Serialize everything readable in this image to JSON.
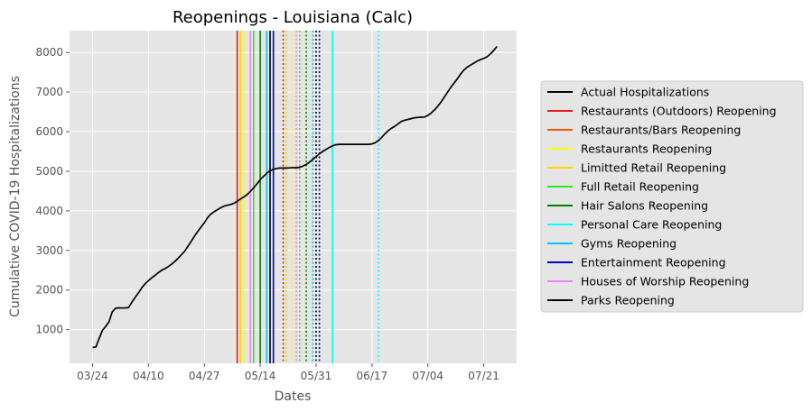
{
  "chart_data": {
    "type": "line",
    "title": "Reopenings - Louisiana (Calc)",
    "xlabel": "Dates",
    "ylabel": "Cumulative COVID-19 Hospitalizations",
    "x_ticks": [
      "03/24",
      "04/10",
      "04/27",
      "05/14",
      "05/31",
      "06/17",
      "07/04",
      "07/21"
    ],
    "y_ticks": [
      1000,
      2000,
      3000,
      4000,
      5000,
      6000,
      7000,
      8000
    ],
    "xlim": [
      "2020-03-17",
      "2020-07-31"
    ],
    "ylim": [
      150,
      8550
    ],
    "grid": true,
    "legend_position": "right",
    "series": [
      {
        "name": "Actual Hospitalizations",
        "color": "#000000",
        "points": [
          [
            "2020-03-24",
            550
          ],
          [
            "2020-03-25",
            560
          ],
          [
            "2020-03-26",
            780
          ],
          [
            "2020-03-27",
            980
          ],
          [
            "2020-03-28",
            1080
          ],
          [
            "2020-03-29",
            1200
          ],
          [
            "2020-03-30",
            1450
          ],
          [
            "2020-03-31",
            1540
          ],
          [
            "2020-04-01",
            1550
          ],
          [
            "2020-04-02",
            1545
          ],
          [
            "2020-04-03",
            1550
          ],
          [
            "2020-04-04",
            1560
          ],
          [
            "2020-04-05",
            1700
          ],
          [
            "2020-04-06",
            1820
          ],
          [
            "2020-04-07",
            1930
          ],
          [
            "2020-04-08",
            2060
          ],
          [
            "2020-04-09",
            2160
          ],
          [
            "2020-04-10",
            2240
          ],
          [
            "2020-04-11",
            2310
          ],
          [
            "2020-04-12",
            2370
          ],
          [
            "2020-04-13",
            2440
          ],
          [
            "2020-04-14",
            2500
          ],
          [
            "2020-04-15",
            2540
          ],
          [
            "2020-04-16",
            2590
          ],
          [
            "2020-04-17",
            2650
          ],
          [
            "2020-04-18",
            2720
          ],
          [
            "2020-04-19",
            2800
          ],
          [
            "2020-04-20",
            2890
          ],
          [
            "2020-04-21",
            2980
          ],
          [
            "2020-04-22",
            3100
          ],
          [
            "2020-04-23",
            3230
          ],
          [
            "2020-04-24",
            3360
          ],
          [
            "2020-04-25",
            3480
          ],
          [
            "2020-04-26",
            3590
          ],
          [
            "2020-04-27",
            3700
          ],
          [
            "2020-04-28",
            3830
          ],
          [
            "2020-04-29",
            3920
          ],
          [
            "2020-04-30",
            3980
          ],
          [
            "2020-05-01",
            4030
          ],
          [
            "2020-05-02",
            4080
          ],
          [
            "2020-05-03",
            4120
          ],
          [
            "2020-05-04",
            4140
          ],
          [
            "2020-05-05",
            4160
          ],
          [
            "2020-05-06",
            4190
          ],
          [
            "2020-05-07",
            4240
          ],
          [
            "2020-05-08",
            4300
          ],
          [
            "2020-05-09",
            4350
          ],
          [
            "2020-05-10",
            4410
          ],
          [
            "2020-05-11",
            4490
          ],
          [
            "2020-05-12",
            4580
          ],
          [
            "2020-05-13",
            4680
          ],
          [
            "2020-05-14",
            4790
          ],
          [
            "2020-05-15",
            4870
          ],
          [
            "2020-05-16",
            4950
          ],
          [
            "2020-05-17",
            5010
          ],
          [
            "2020-05-18",
            5050
          ],
          [
            "2020-05-19",
            5070
          ],
          [
            "2020-05-20",
            5080
          ],
          [
            "2020-05-21",
            5080
          ],
          [
            "2020-05-22",
            5080
          ],
          [
            "2020-05-23",
            5085
          ],
          [
            "2020-05-24",
            5090
          ],
          [
            "2020-05-25",
            5090
          ],
          [
            "2020-05-26",
            5100
          ],
          [
            "2020-05-27",
            5130
          ],
          [
            "2020-05-28",
            5170
          ],
          [
            "2020-05-29",
            5230
          ],
          [
            "2020-05-30",
            5300
          ],
          [
            "2020-05-31",
            5370
          ],
          [
            "2020-06-01",
            5440
          ],
          [
            "2020-06-02",
            5500
          ],
          [
            "2020-06-03",
            5550
          ],
          [
            "2020-06-04",
            5600
          ],
          [
            "2020-06-05",
            5640
          ],
          [
            "2020-06-06",
            5670
          ],
          [
            "2020-06-07",
            5680
          ],
          [
            "2020-06-08",
            5680
          ],
          [
            "2020-06-09",
            5680
          ],
          [
            "2020-06-10",
            5680
          ],
          [
            "2020-06-11",
            5680
          ],
          [
            "2020-06-12",
            5680
          ],
          [
            "2020-06-13",
            5680
          ],
          [
            "2020-06-14",
            5680
          ],
          [
            "2020-06-15",
            5680
          ],
          [
            "2020-06-16",
            5680
          ],
          [
            "2020-06-17",
            5690
          ],
          [
            "2020-06-18",
            5720
          ],
          [
            "2020-06-19",
            5780
          ],
          [
            "2020-06-20",
            5860
          ],
          [
            "2020-06-21",
            5950
          ],
          [
            "2020-06-22",
            6030
          ],
          [
            "2020-06-23",
            6090
          ],
          [
            "2020-06-24",
            6140
          ],
          [
            "2020-06-25",
            6200
          ],
          [
            "2020-06-26",
            6260
          ],
          [
            "2020-06-27",
            6290
          ],
          [
            "2020-06-28",
            6310
          ],
          [
            "2020-06-29",
            6330
          ],
          [
            "2020-06-30",
            6350
          ],
          [
            "2020-07-01",
            6360
          ],
          [
            "2020-07-02",
            6365
          ],
          [
            "2020-07-03",
            6370
          ],
          [
            "2020-07-04",
            6410
          ],
          [
            "2020-07-05",
            6470
          ],
          [
            "2020-07-06",
            6550
          ],
          [
            "2020-07-07",
            6640
          ],
          [
            "2020-07-08",
            6750
          ],
          [
            "2020-07-09",
            6870
          ],
          [
            "2020-07-10",
            7000
          ],
          [
            "2020-07-11",
            7120
          ],
          [
            "2020-07-12",
            7230
          ],
          [
            "2020-07-13",
            7340
          ],
          [
            "2020-07-14",
            7460
          ],
          [
            "2020-07-15",
            7560
          ],
          [
            "2020-07-16",
            7630
          ],
          [
            "2020-07-17",
            7680
          ],
          [
            "2020-07-18",
            7730
          ],
          [
            "2020-07-19",
            7780
          ],
          [
            "2020-07-20",
            7820
          ],
          [
            "2020-07-21",
            7850
          ],
          [
            "2020-07-22",
            7890
          ],
          [
            "2020-07-23",
            7960
          ],
          [
            "2020-07-24",
            8050
          ],
          [
            "2020-07-25",
            8150
          ]
        ]
      }
    ],
    "reopenings": [
      {
        "name": "Restaurants (Outdoors) Reopening",
        "color": "#e41a1c",
        "solid": "2020-05-07",
        "dotted": "2020-05-21"
      },
      {
        "name": "Restaurants/Bars Reopening",
        "color": "#ff5500",
        "solid": "2020-05-08",
        "dotted": "2020-05-22"
      },
      {
        "name": "Restaurants Reopening",
        "color": "#ffff00",
        "solid": "2020-05-09",
        "dotted": "2020-05-24"
      },
      {
        "name": "Limitted Retail Reopening",
        "color": "#ffd700",
        "solid": "2020-05-08",
        "dotted": "2020-05-22"
      },
      {
        "name": "Full Retail Reopening",
        "color": "#22ee22",
        "solid": "2020-05-12",
        "dotted": "2020-05-26"
      },
      {
        "name": "Hair Salons Reopening",
        "color": "#008000",
        "solid": "2020-05-14",
        "dotted": "2020-05-28"
      },
      {
        "name": "Personal Care Reopening",
        "color": "#00ffff",
        "solid": "2020-06-05",
        "dotted": "2020-06-19"
      },
      {
        "name": "Gyms Reopening",
        "color": "#00bfff",
        "solid": "2020-05-16",
        "dotted": "2020-05-30"
      },
      {
        "name": "Entertainment Reopening",
        "color": "#0000cd",
        "solid": "2020-05-18",
        "dotted": "2020-06-01"
      },
      {
        "name": "Houses of Worship Reopening",
        "color": "#ee82ee",
        "solid": "2020-05-11",
        "dotted": "2020-05-25"
      },
      {
        "name": "Parks Reopening",
        "color": "#000000",
        "solid": "2020-05-17",
        "dotted": "2020-05-31"
      }
    ]
  }
}
